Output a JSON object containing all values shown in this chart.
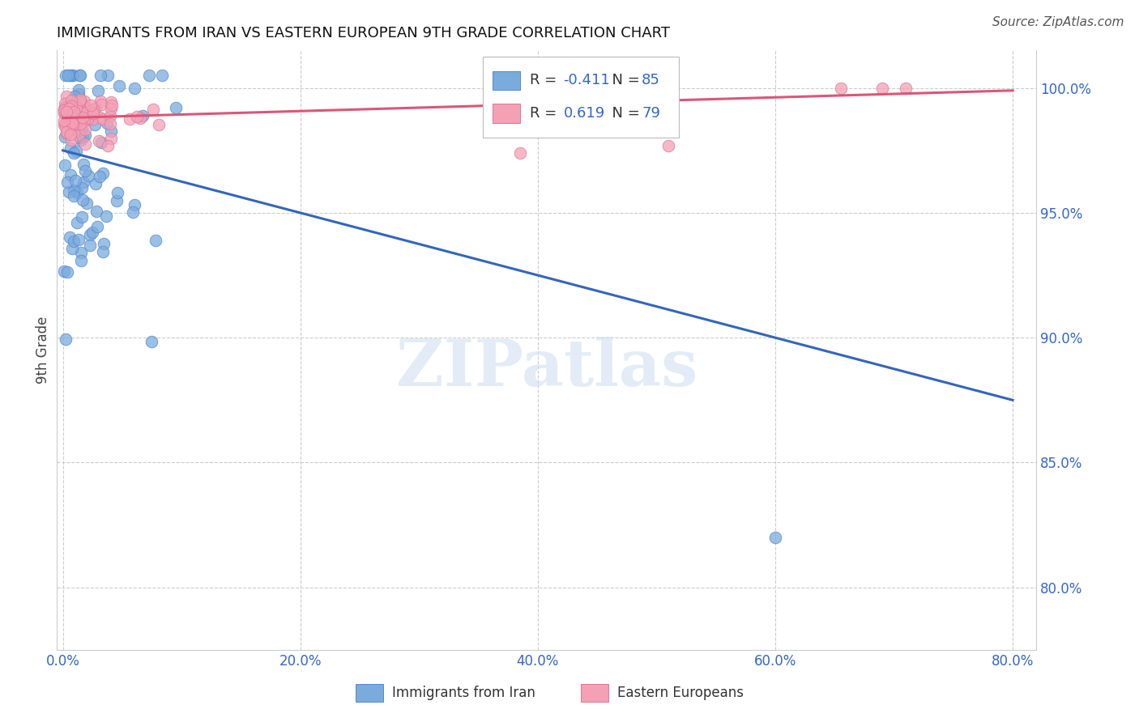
{
  "title": "IMMIGRANTS FROM IRAN VS EASTERN EUROPEAN 9TH GRADE CORRELATION CHART",
  "source": "Source: ZipAtlas.com",
  "ylabel": "9th Grade",
  "right_ytick_labels": [
    "100.0%",
    "95.0%",
    "90.0%",
    "85.0%",
    "80.0%"
  ],
  "right_ytick_vals": [
    1.0,
    0.95,
    0.9,
    0.85,
    0.8
  ],
  "ylim": [
    0.775,
    1.015
  ],
  "xlim": [
    -0.005,
    0.82
  ],
  "watermark": "ZIPatlas",
  "legend_bottom1": "Immigrants from Iran",
  "legend_bottom2": "Eastern Europeans",
  "blue_color": "#7aabdd",
  "pink_color": "#f4a0b5",
  "blue_line_color": "#3366bb",
  "pink_line_color": "#dd5577",
  "blue_line_x0": 0.0,
  "blue_line_y0": 0.975,
  "blue_line_x1": 0.8,
  "blue_line_y1": 0.875,
  "pink_line_x0": 0.0,
  "pink_line_y0": 0.988,
  "pink_line_x1": 0.8,
  "pink_line_y1": 0.999
}
